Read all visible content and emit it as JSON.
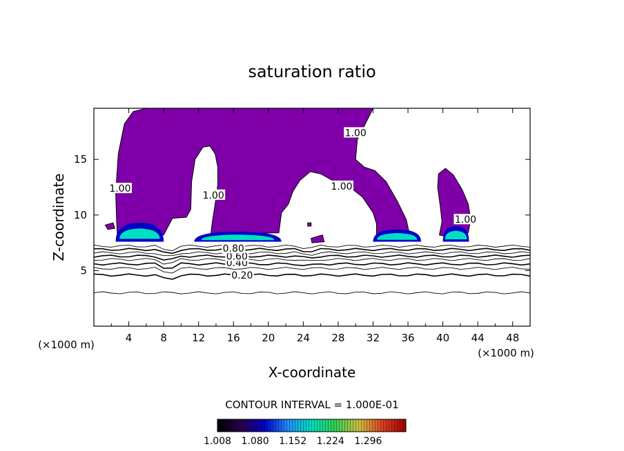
{
  "colors": {
    "background": "#ffffff",
    "axis": "#000000",
    "saturated_fill": "#7f00a8",
    "colorbar_stops": [
      "#000000",
      "#2a004c",
      "#0000c8",
      "#1e90ff",
      "#00e0c0",
      "#30d050",
      "#d0c040",
      "#e04020",
      "#a00000"
    ]
  },
  "chart_data": {
    "type": "contour",
    "title": "saturation ratio",
    "xlabel": "X-coordinate",
    "ylabel": "Z-coordinate",
    "x_unit": "(×1000 m)",
    "y_unit": "(×1000 m)",
    "xlim": [
      0,
      50
    ],
    "ylim": [
      0,
      19.6
    ],
    "xticks": [
      4,
      8,
      12,
      16,
      20,
      24,
      28,
      32,
      36,
      40,
      44,
      48
    ],
    "yticks": [
      5,
      10,
      15
    ],
    "contour_interval_text": "CONTOUR INTERVAL = 1.000E-01",
    "contour_levels": [
      0.1,
      0.2,
      0.3,
      0.4,
      0.5,
      0.6,
      0.7,
      0.8,
      0.9
    ],
    "contour_heights_km": [
      3.0,
      4.6,
      5.2,
      5.6,
      6.0,
      6.3,
      6.6,
      6.9,
      7.2
    ],
    "contour_labels": [
      {
        "text": "0.20",
        "x": 17.0,
        "y": 4.6
      },
      {
        "text": "0.40",
        "x": 16.4,
        "y": 5.7
      },
      {
        "text": "0.60",
        "x": 16.4,
        "y": 6.3
      },
      {
        "text": "0.80",
        "x": 16.0,
        "y": 7.0
      },
      {
        "text": "1.00",
        "x": 28.4,
        "y": 12.6
      },
      {
        "text": "1.00",
        "x": 30.0,
        "y": 17.4
      },
      {
        "text": "1.00",
        "x": 13.7,
        "y": 11.8
      },
      {
        "text": "1.00",
        "x": 3.0,
        "y": 12.4
      },
      {
        "text": "1.00",
        "x": 42.6,
        "y": 9.6
      }
    ],
    "saturated_region_levels": "≥ 1.00",
    "high_supersaturation_patches_km": [
      {
        "x": [
          2.5,
          8.0
        ],
        "ztop": 9.3
      },
      {
        "x": [
          11.5,
          21.5
        ],
        "ztop": 8.5
      },
      {
        "x": [
          32.0,
          37.5
        ],
        "ztop": 8.7
      },
      {
        "x": [
          40.0,
          43.0
        ],
        "ztop": 9.0
      }
    ],
    "colorbar": {
      "min": 1.008,
      "max": 1.368,
      "tick_labels": [
        "1.008",
        "1.080",
        "1.152",
        "1.224",
        "1.296"
      ]
    }
  }
}
